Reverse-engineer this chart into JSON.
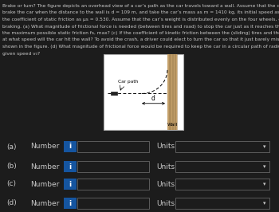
{
  "bg_color": "#1c1c1c",
  "text_color": "#c8c8c8",
  "title_lines": [
    "Brake or turn? The figure depicts an overhead view of a car’s path as the car travels toward a wall. Assume that the driver begins to",
    "brake the car when the distance to the wall is d = 109 m, and take the car’s mass as m = 1410 kg, its initial speed as v₀ = 38.0 m/s, and",
    "the coefficient of static friction as μs = 0.530. Assume that the car’s weight is distributed evenly on the four wheels, even during",
    "braking. (a) What magnitude of frictional force is needed (between tires and road) to stop the car just as it reaches the wall? (b) What is",
    "the maximum possible static friction fs, max? (c) If the coefficient of kinetic friction between the (sliding) tires and the road is μk = 0.440,",
    "at what speed will the car hit the wall? To avoid the crash, a driver could elect to turn the car so that it just barely misses the wall, as",
    "shown in the figure. (d) What magnitude of frictional force would be required to keep the car in a circular path of radius d and at the",
    "given speed v₀?"
  ],
  "input_color": "#1555a0",
  "bg_dark": "#1c1c1c",
  "border_color": "#555555",
  "row_labels": [
    "(a)",
    "(b)",
    "(c)",
    "(d)"
  ]
}
